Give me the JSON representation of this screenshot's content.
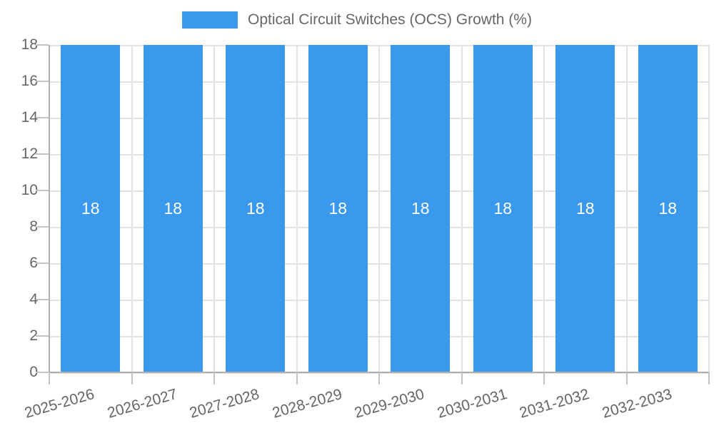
{
  "chart_data": {
    "type": "bar",
    "legend_label": "Optical Circuit Switches (OCS) Growth (%)",
    "categories": [
      "2025-2026",
      "2026-2027",
      "2027-2028",
      "2028-2029",
      "2029-2030",
      "2030-2031",
      "2031-2032",
      "2032-2033"
    ],
    "values": [
      18,
      18,
      18,
      18,
      18,
      18,
      18,
      18
    ],
    "value_labels": [
      "18",
      "18",
      "18",
      "18",
      "18",
      "18",
      "18",
      "18"
    ],
    "ylabel": "",
    "xlabel": "",
    "ylim": [
      0,
      18
    ],
    "ytick_step": 2,
    "ytick_labels": [
      "0",
      "2",
      "4",
      "6",
      "8",
      "10",
      "12",
      "14",
      "16",
      "18"
    ],
    "grid": true,
    "legend_position": "top",
    "colors": {
      "bar": "#3a99ec",
      "bar_value_label": "#ffffff",
      "tick_text": "#666666",
      "legend_text": "#666666",
      "gridline": "#e3e3e3",
      "axis_border": "#b0b0b0",
      "background": "#ffffff"
    }
  }
}
